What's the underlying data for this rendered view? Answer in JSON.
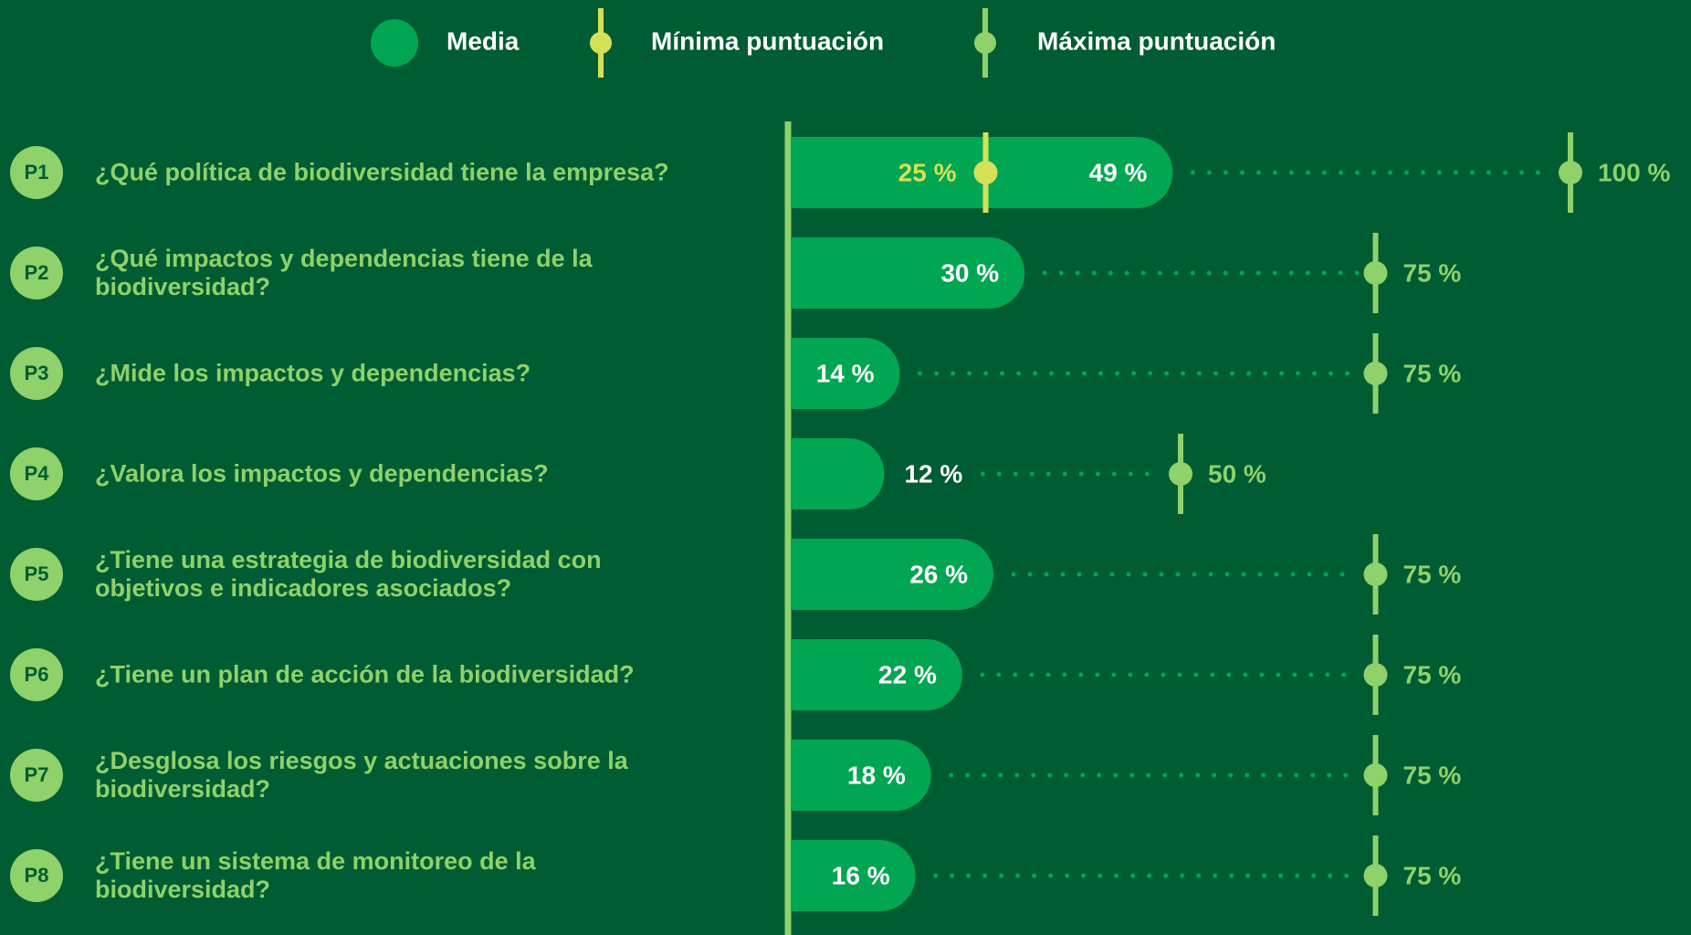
{
  "chart_data": {
    "type": "bar",
    "categories": [
      "P1",
      "P2",
      "P3",
      "P4",
      "P5",
      "P6",
      "P7",
      "P8"
    ],
    "questions": [
      "¿Qué política de biodiversidad tiene la empresa?",
      "¿Qué impactos y dependencias tiene de la\nbiodiversidad?",
      "¿Mide los impactos y dependencias?",
      "¿Valora los impactos y dependencias?",
      "¿Tiene una estrategia de biodiversidad con\nobjetivos e indicadores asociados?",
      "¿Tiene un plan de acción de la biodiversidad?",
      "¿Desglosa los riesgos y actuaciones sobre la\nbiodiversidad?",
      "¿Tiene un sistema de monitoreo de la\nbiodiversidad?"
    ],
    "xlim": [
      0,
      100
    ],
    "series": [
      {
        "name": "Media",
        "color": "#00a651",
        "values": [
          49,
          30,
          14,
          12,
          26,
          22,
          18,
          16
        ],
        "value_labels": [
          "49 %",
          "30 %",
          "14 %",
          "12 %",
          "26 %",
          "22 %",
          "18 %",
          "16 %"
        ]
      },
      {
        "name": "Mínima puntuación",
        "color": "#d4e157",
        "values": [
          25,
          null,
          null,
          null,
          null,
          null,
          null,
          null
        ],
        "value_labels": [
          "25 %",
          null,
          null,
          null,
          null,
          null,
          null,
          null
        ]
      },
      {
        "name": "Máxima puntuación",
        "color": "#8fd16b",
        "values": [
          100,
          75,
          75,
          50,
          75,
          75,
          75,
          75
        ],
        "value_labels": [
          "100 %",
          "75 %",
          "75 %",
          "50 %",
          "75 %",
          "75 %",
          "75 %",
          "75 %"
        ]
      }
    ]
  }
}
